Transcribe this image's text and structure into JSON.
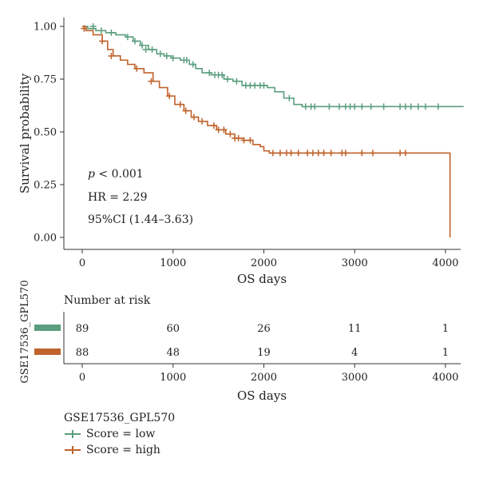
{
  "chart_data": {
    "type": "line",
    "subtype": "kaplan-meier",
    "xlabel": "OS days",
    "ylabel": "Survival probability",
    "xlim": [
      0,
      4200
    ],
    "ylim": [
      0,
      1
    ],
    "x_ticks": [
      0,
      1000,
      2000,
      3000,
      4000
    ],
    "y_ticks": [
      0.0,
      0.25,
      0.5,
      0.75,
      1.0
    ],
    "y_tick_labels": [
      "0.00",
      "0.25",
      "0.50",
      "0.75",
      "1.00"
    ],
    "grid": false,
    "annotations": {
      "p_italic": "p",
      "p_rest": " < 0.001",
      "hr": "HR = 2.29",
      "ci": "95%CI (1.44–3.63)"
    },
    "series": [
      {
        "name": "Score = low",
        "color": "#5b9e7e",
        "steps": [
          [
            0,
            1.0
          ],
          [
            60,
            0.99
          ],
          [
            150,
            0.98
          ],
          [
            260,
            0.97
          ],
          [
            370,
            0.96
          ],
          [
            480,
            0.95
          ],
          [
            560,
            0.93
          ],
          [
            640,
            0.91
          ],
          [
            730,
            0.89
          ],
          [
            820,
            0.87
          ],
          [
            900,
            0.86
          ],
          [
            980,
            0.85
          ],
          [
            1080,
            0.84
          ],
          [
            1180,
            0.82
          ],
          [
            1250,
            0.8
          ],
          [
            1320,
            0.78
          ],
          [
            1420,
            0.77
          ],
          [
            1560,
            0.75
          ],
          [
            1660,
            0.74
          ],
          [
            1760,
            0.72
          ],
          [
            2040,
            0.71
          ],
          [
            2120,
            0.69
          ],
          [
            2220,
            0.66
          ],
          [
            2330,
            0.63
          ],
          [
            2420,
            0.62
          ],
          [
            4200,
            0.62
          ]
        ],
        "censors": [
          [
            120,
            1.0
          ],
          [
            210,
            0.98
          ],
          [
            320,
            0.97
          ],
          [
            500,
            0.95
          ],
          [
            580,
            0.93
          ],
          [
            660,
            0.91
          ],
          [
            700,
            0.89
          ],
          [
            770,
            0.89
          ],
          [
            860,
            0.87
          ],
          [
            930,
            0.86
          ],
          [
            1000,
            0.85
          ],
          [
            1120,
            0.84
          ],
          [
            1150,
            0.84
          ],
          [
            1220,
            0.82
          ],
          [
            1400,
            0.78
          ],
          [
            1460,
            0.77
          ],
          [
            1500,
            0.77
          ],
          [
            1540,
            0.77
          ],
          [
            1600,
            0.75
          ],
          [
            1700,
            0.74
          ],
          [
            1800,
            0.72
          ],
          [
            1850,
            0.72
          ],
          [
            1900,
            0.72
          ],
          [
            1960,
            0.72
          ],
          [
            2000,
            0.72
          ],
          [
            2280,
            0.66
          ],
          [
            2460,
            0.62
          ],
          [
            2520,
            0.62
          ],
          [
            2560,
            0.62
          ],
          [
            2720,
            0.62
          ],
          [
            2830,
            0.62
          ],
          [
            2900,
            0.62
          ],
          [
            2950,
            0.62
          ],
          [
            3000,
            0.62
          ],
          [
            3080,
            0.62
          ],
          [
            3180,
            0.62
          ],
          [
            3320,
            0.62
          ],
          [
            3500,
            0.62
          ],
          [
            3560,
            0.62
          ],
          [
            3620,
            0.62
          ],
          [
            3700,
            0.62
          ],
          [
            3780,
            0.62
          ],
          [
            3920,
            0.62
          ]
        ]
      },
      {
        "name": "Score = high",
        "color": "#c0622b",
        "steps": [
          [
            0,
            1.0
          ],
          [
            40,
            0.98
          ],
          [
            120,
            0.96
          ],
          [
            220,
            0.93
          ],
          [
            280,
            0.89
          ],
          [
            340,
            0.86
          ],
          [
            420,
            0.84
          ],
          [
            500,
            0.82
          ],
          [
            580,
            0.8
          ],
          [
            680,
            0.78
          ],
          [
            780,
            0.74
          ],
          [
            850,
            0.71
          ],
          [
            940,
            0.67
          ],
          [
            1020,
            0.63
          ],
          [
            1120,
            0.6
          ],
          [
            1200,
            0.57
          ],
          [
            1280,
            0.55
          ],
          [
            1380,
            0.53
          ],
          [
            1480,
            0.51
          ],
          [
            1580,
            0.49
          ],
          [
            1680,
            0.47
          ],
          [
            1780,
            0.46
          ],
          [
            1880,
            0.44
          ],
          [
            1960,
            0.43
          ],
          [
            2000,
            0.41
          ],
          [
            2060,
            0.4
          ],
          [
            4050,
            0.4
          ],
          [
            4050,
            0.0
          ]
        ],
        "censors": [
          [
            20,
            0.99
          ],
          [
            220,
            0.93
          ],
          [
            320,
            0.86
          ],
          [
            600,
            0.8
          ],
          [
            760,
            0.74
          ],
          [
            960,
            0.67
          ],
          [
            1080,
            0.63
          ],
          [
            1140,
            0.6
          ],
          [
            1230,
            0.57
          ],
          [
            1320,
            0.55
          ],
          [
            1450,
            0.53
          ],
          [
            1500,
            0.51
          ],
          [
            1560,
            0.51
          ],
          [
            1630,
            0.49
          ],
          [
            1680,
            0.47
          ],
          [
            1720,
            0.47
          ],
          [
            1780,
            0.46
          ],
          [
            1850,
            0.46
          ],
          [
            2100,
            0.4
          ],
          [
            2180,
            0.4
          ],
          [
            2250,
            0.4
          ],
          [
            2300,
            0.4
          ],
          [
            2380,
            0.4
          ],
          [
            2480,
            0.4
          ],
          [
            2540,
            0.4
          ],
          [
            2600,
            0.4
          ],
          [
            2660,
            0.4
          ],
          [
            2740,
            0.4
          ],
          [
            2860,
            0.4
          ],
          [
            2900,
            0.4
          ],
          [
            3080,
            0.4
          ],
          [
            3200,
            0.4
          ],
          [
            3500,
            0.4
          ],
          [
            3560,
            0.4
          ]
        ]
      }
    ],
    "risk_table": {
      "title": "Number at risk",
      "group_label": "GSE17536_GPL570",
      "xlabel": "OS days",
      "x_ticks": [
        0,
        1000,
        2000,
        3000,
        4000
      ],
      "rows": [
        {
          "color": "#5b9e7e",
          "values": [
            89,
            60,
            26,
            11,
            1
          ]
        },
        {
          "color": "#c0622b",
          "values": [
            88,
            48,
            19,
            4,
            1
          ]
        }
      ]
    },
    "legend": {
      "title": "GSE17536_GPL570",
      "position": "bottom-left",
      "entries": [
        "Score = low",
        "Score = high"
      ]
    }
  }
}
